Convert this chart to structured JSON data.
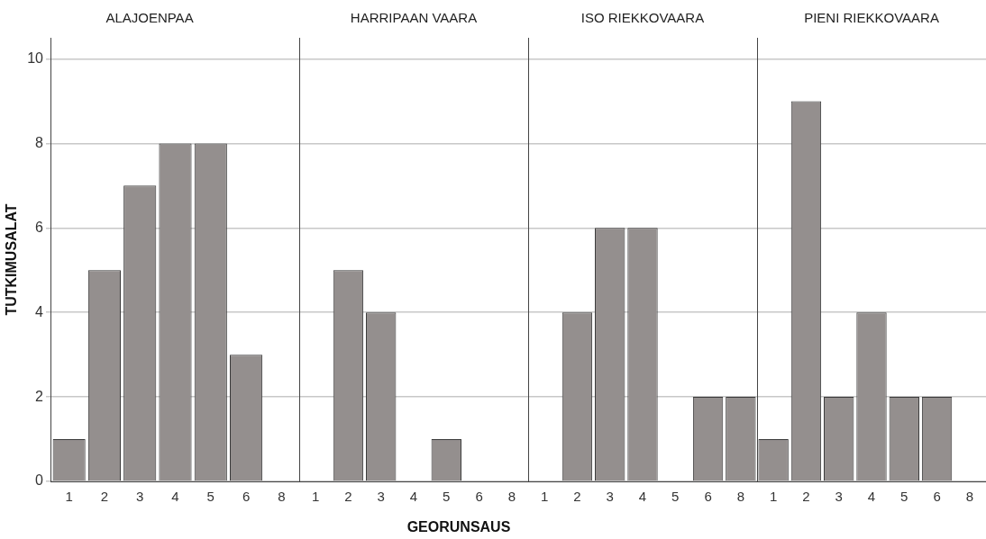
{
  "chart_data": [
    {
      "type": "bar",
      "title": "ALAJOENPAA",
      "ylabel": "TUTKIMUSALAT",
      "categories": [
        "1",
        "2",
        "3",
        "4",
        "5",
        "6",
        "8"
      ],
      "values": [
        1,
        5,
        7,
        8,
        8,
        3,
        0
      ],
      "color": "#948f8e",
      "ylim": [
        0,
        10.5
      ],
      "yticks": [
        0,
        2,
        4,
        6,
        8,
        10
      ],
      "grid": "y"
    },
    {
      "type": "bar",
      "title": "HARRIPAAN VAARA",
      "xlabel": "GEORUNSAUS",
      "categories": [
        "1",
        "2",
        "3",
        "4",
        "5",
        "6",
        "8"
      ],
      "values": [
        0,
        5,
        4,
        0,
        1,
        0,
        0
      ],
      "color": "#948f8e",
      "ylim": [
        0,
        10.5
      ],
      "yticks": [
        0,
        2,
        4,
        6,
        8,
        10
      ],
      "grid": "y",
      "tick_labels": "x"
    },
    {
      "type": "bar",
      "title": "ISO RIEKKOVAARA",
      "categories": [
        "1",
        "2",
        "3",
        "4",
        "5",
        "6",
        "8"
      ],
      "values": [
        0,
        4,
        6,
        6,
        0,
        2,
        2
      ],
      "color": "#948f8e",
      "ylim": [
        0,
        10.5
      ],
      "yticks": [
        0,
        2,
        4,
        6,
        8,
        10
      ],
      "grid": "y",
      "tick_labels": "x"
    },
    {
      "type": "bar",
      "title": "PIENI RIEKKOVAARA",
      "categories": [
        "1",
        "2",
        "3",
        "4",
        "5",
        "6",
        "8"
      ],
      "values": [
        1,
        9,
        2,
        4,
        2,
        2,
        0
      ],
      "color": "#948f8e",
      "ylim": [
        0,
        10.5
      ],
      "yticks": [
        0,
        2,
        4,
        6,
        8,
        10
      ],
      "grid": "y",
      "tick_labels": "x"
    }
  ]
}
